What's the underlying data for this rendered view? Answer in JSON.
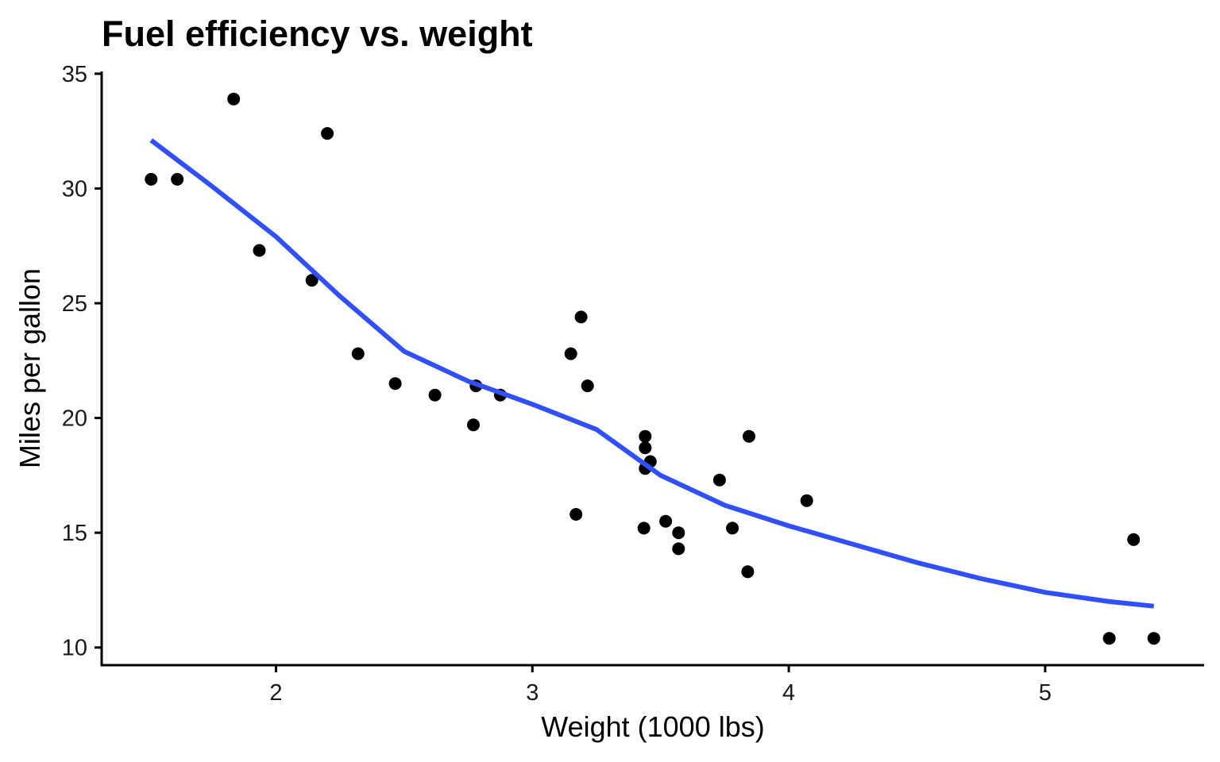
{
  "chart_data": {
    "type": "scatter",
    "title": "Fuel efficiency vs. weight",
    "xlabel": "Weight (1000 lbs)",
    "ylabel": "Miles per gallon",
    "xlim": [
      1.32,
      5.62
    ],
    "ylim": [
      9.23,
      35.1
    ],
    "x_ticks": [
      2,
      3,
      4,
      5
    ],
    "y_ticks": [
      10,
      15,
      20,
      25,
      30,
      35
    ],
    "grid": false,
    "legend": "none",
    "point_color": "#000000",
    "smooth_color": "#3050ff",
    "points": [
      [
        2.62,
        21.0
      ],
      [
        2.875,
        21.0
      ],
      [
        2.32,
        22.8
      ],
      [
        3.215,
        21.4
      ],
      [
        3.44,
        18.7
      ],
      [
        3.46,
        18.1
      ],
      [
        3.57,
        14.3
      ],
      [
        3.19,
        24.4
      ],
      [
        3.15,
        22.8
      ],
      [
        3.44,
        19.2
      ],
      [
        3.44,
        17.8
      ],
      [
        4.07,
        16.4
      ],
      [
        3.73,
        17.3
      ],
      [
        3.78,
        15.2
      ],
      [
        5.25,
        10.4
      ],
      [
        5.424,
        10.4
      ],
      [
        5.345,
        14.7
      ],
      [
        2.2,
        32.4
      ],
      [
        1.615,
        30.4
      ],
      [
        1.835,
        33.9
      ],
      [
        2.465,
        21.5
      ],
      [
        3.52,
        15.5
      ],
      [
        3.435,
        15.2
      ],
      [
        3.84,
        13.3
      ],
      [
        3.845,
        19.2
      ],
      [
        1.935,
        27.3
      ],
      [
        2.14,
        26.0
      ],
      [
        1.513,
        30.4
      ],
      [
        3.17,
        15.8
      ],
      [
        2.77,
        19.7
      ],
      [
        3.57,
        15.0
      ],
      [
        2.78,
        21.4
      ]
    ],
    "smooth_line": [
      [
        1.513,
        32.1
      ],
      [
        1.75,
        30.1
      ],
      [
        2.0,
        27.9
      ],
      [
        2.25,
        25.3
      ],
      [
        2.5,
        22.9
      ],
      [
        2.75,
        21.6
      ],
      [
        3.0,
        20.6
      ],
      [
        3.25,
        19.5
      ],
      [
        3.5,
        17.5
      ],
      [
        3.75,
        16.2
      ],
      [
        4.0,
        15.3
      ],
      [
        4.25,
        14.5
      ],
      [
        4.5,
        13.7
      ],
      [
        4.75,
        13.0
      ],
      [
        5.0,
        12.4
      ],
      [
        5.25,
        12.0
      ],
      [
        5.424,
        11.8
      ]
    ]
  }
}
